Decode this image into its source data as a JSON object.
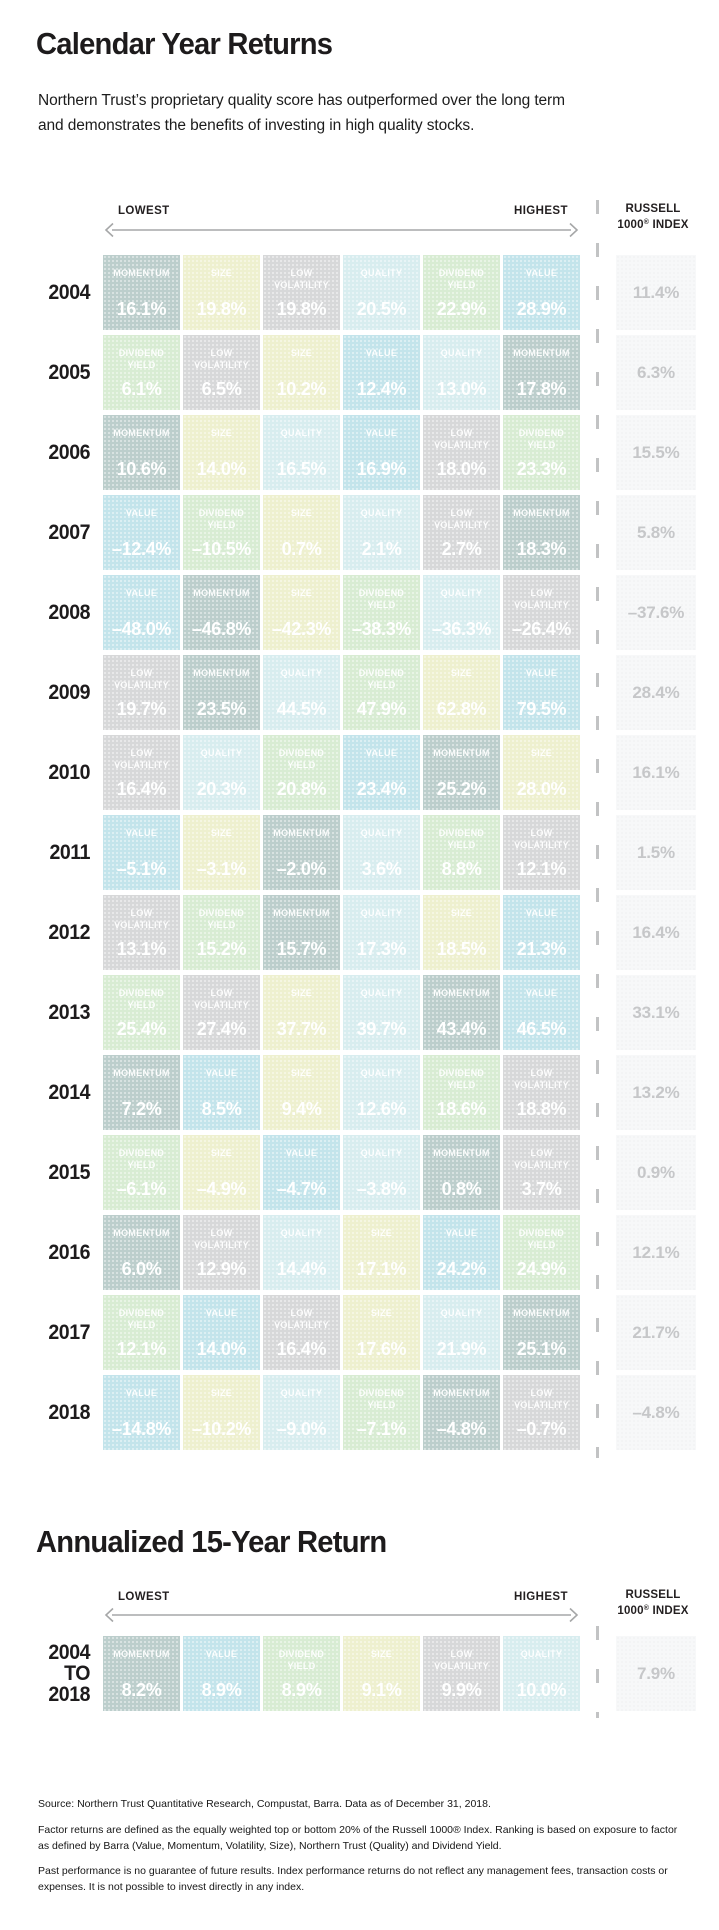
{
  "page": {
    "title": "Calendar Year Returns",
    "subtitle_line1": "Northern Trust’s proprietary quality score has outperformed over the long term",
    "subtitle_line2": "and demonstrates the benefits of investing in high quality stocks."
  },
  "scale_header": {
    "lowest": "LOWEST",
    "highest": "HIGHEST",
    "russell_line1": "RUSSELL",
    "russell_line2_num": "1000",
    "russell_line2_reg": "®",
    "russell_line2_rest": " INDEX"
  },
  "factor_colors": {
    "MOMENTUM": "#bccecc",
    "SIZE": "#eef0cf",
    "LOW VOLATILITY": "#d7d8d9",
    "QUALITY": "#d8edef",
    "DIVIDEND YIELD": "#d8ecd3",
    "VALUE": "#c3e4eb"
  },
  "chart_data": {
    "type": "table",
    "title": "Calendar Year Returns",
    "layout_note": "Each year row ranks six factor returns from lowest (left) to highest (right); right column is the Russell 1000 Index return",
    "rows": [
      {
        "year_lines": [
          "2004"
        ],
        "cells": [
          {
            "factor": "MOMENTUM",
            "value": "16.1%"
          },
          {
            "factor": "SIZE",
            "value": "19.8%"
          },
          {
            "factor": "LOW VOLATILITY",
            "value": "19.8%"
          },
          {
            "factor": "QUALITY",
            "value": "20.5%"
          },
          {
            "factor": "DIVIDEND YIELD",
            "value": "22.9%"
          },
          {
            "factor": "VALUE",
            "value": "28.9%"
          }
        ],
        "russell": "11.4%"
      },
      {
        "year_lines": [
          "2005"
        ],
        "cells": [
          {
            "factor": "DIVIDEND YIELD",
            "value": "6.1%"
          },
          {
            "factor": "LOW VOLATILITY",
            "value": "6.5%"
          },
          {
            "factor": "SIZE",
            "value": "10.2%"
          },
          {
            "factor": "VALUE",
            "value": "12.4%"
          },
          {
            "factor": "QUALITY",
            "value": "13.0%"
          },
          {
            "factor": "MOMENTUM",
            "value": "17.8%"
          }
        ],
        "russell": "6.3%"
      },
      {
        "year_lines": [
          "2006"
        ],
        "cells": [
          {
            "factor": "MOMENTUM",
            "value": "10.6%"
          },
          {
            "factor": "SIZE",
            "value": "14.0%"
          },
          {
            "factor": "QUALITY",
            "value": "16.5%"
          },
          {
            "factor": "VALUE",
            "value": "16.9%"
          },
          {
            "factor": "LOW VOLATILITY",
            "value": "18.0%"
          },
          {
            "factor": "DIVIDEND YIELD",
            "value": "23.3%"
          }
        ],
        "russell": "15.5%"
      },
      {
        "year_lines": [
          "2007"
        ],
        "cells": [
          {
            "factor": "VALUE",
            "value": "–12.4%"
          },
          {
            "factor": "DIVIDEND YIELD",
            "value": "–10.5%"
          },
          {
            "factor": "SIZE",
            "value": "0.7%"
          },
          {
            "factor": "QUALITY",
            "value": "2.1%"
          },
          {
            "factor": "LOW VOLATILITY",
            "value": "2.7%"
          },
          {
            "factor": "MOMENTUM",
            "value": "18.3%"
          }
        ],
        "russell": "5.8%"
      },
      {
        "year_lines": [
          "2008"
        ],
        "cells": [
          {
            "factor": "VALUE",
            "value": "–48.0%"
          },
          {
            "factor": "MOMENTUM",
            "value": "–46.8%"
          },
          {
            "factor": "SIZE",
            "value": "–42.3%"
          },
          {
            "factor": "DIVIDEND YIELD",
            "value": "–38.3%"
          },
          {
            "factor": "QUALITY",
            "value": "–36.3%"
          },
          {
            "factor": "LOW VOLATILITY",
            "value": "–26.4%"
          }
        ],
        "russell": "–37.6%"
      },
      {
        "year_lines": [
          "2009"
        ],
        "cells": [
          {
            "factor": "LOW VOLATILITY",
            "value": "19.7%"
          },
          {
            "factor": "MOMENTUM",
            "value": "23.5%"
          },
          {
            "factor": "QUALITY",
            "value": "44.5%"
          },
          {
            "factor": "DIVIDEND YIELD",
            "value": "47.9%"
          },
          {
            "factor": "SIZE",
            "value": "62.8%"
          },
          {
            "factor": "VALUE",
            "value": "79.5%"
          }
        ],
        "russell": "28.4%"
      },
      {
        "year_lines": [
          "2010"
        ],
        "cells": [
          {
            "factor": "LOW VOLATILITY",
            "value": "16.4%"
          },
          {
            "factor": "QUALITY",
            "value": "20.3%"
          },
          {
            "factor": "DIVIDEND YIELD",
            "value": "20.8%"
          },
          {
            "factor": "VALUE",
            "value": "23.4%"
          },
          {
            "factor": "MOMENTUM",
            "value": "25.2%"
          },
          {
            "factor": "SIZE",
            "value": "28.0%"
          }
        ],
        "russell": "16.1%"
      },
      {
        "year_lines": [
          "2011"
        ],
        "cells": [
          {
            "factor": "VALUE",
            "value": "–5.1%"
          },
          {
            "factor": "SIZE",
            "value": "–3.1%"
          },
          {
            "factor": "MOMENTUM",
            "value": "–2.0%"
          },
          {
            "factor": "QUALITY",
            "value": "3.6%"
          },
          {
            "factor": "DIVIDEND YIELD",
            "value": "8.8%"
          },
          {
            "factor": "LOW VOLATILITY",
            "value": "12.1%"
          }
        ],
        "russell": "1.5%"
      },
      {
        "year_lines": [
          "2012"
        ],
        "cells": [
          {
            "factor": "LOW VOLATILITY",
            "value": "13.1%"
          },
          {
            "factor": "DIVIDEND YIELD",
            "value": "15.2%"
          },
          {
            "factor": "MOMENTUM",
            "value": "15.7%"
          },
          {
            "factor": "QUALITY",
            "value": "17.3%"
          },
          {
            "factor": "SIZE",
            "value": "18.5%"
          },
          {
            "factor": "VALUE",
            "value": "21.3%"
          }
        ],
        "russell": "16.4%"
      },
      {
        "year_lines": [
          "2013"
        ],
        "cells": [
          {
            "factor": "DIVIDEND YIELD",
            "value": "25.4%"
          },
          {
            "factor": "LOW VOLATILITY",
            "value": "27.4%"
          },
          {
            "factor": "SIZE",
            "value": "37.7%"
          },
          {
            "factor": "QUALITY",
            "value": "39.7%"
          },
          {
            "factor": "MOMENTUM",
            "value": "43.4%"
          },
          {
            "factor": "VALUE",
            "value": "46.5%"
          }
        ],
        "russell": "33.1%"
      },
      {
        "year_lines": [
          "2014"
        ],
        "cells": [
          {
            "factor": "MOMENTUM",
            "value": "7.2%"
          },
          {
            "factor": "VALUE",
            "value": "8.5%"
          },
          {
            "factor": "SIZE",
            "value": "9.4%"
          },
          {
            "factor": "QUALITY",
            "value": "12.6%"
          },
          {
            "factor": "DIVIDEND YIELD",
            "value": "18.6%"
          },
          {
            "factor": "LOW VOLATILITY",
            "value": "18.8%"
          }
        ],
        "russell": "13.2%"
      },
      {
        "year_lines": [
          "2015"
        ],
        "cells": [
          {
            "factor": "DIVIDEND YIELD",
            "value": "–6.1%"
          },
          {
            "factor": "SIZE",
            "value": "–4.9%"
          },
          {
            "factor": "VALUE",
            "value": "–4.7%"
          },
          {
            "factor": "QUALITY",
            "value": "–3.8%"
          },
          {
            "factor": "MOMENTUM",
            "value": "0.8%"
          },
          {
            "factor": "LOW VOLATILITY",
            "value": "3.7%"
          }
        ],
        "russell": "0.9%"
      },
      {
        "year_lines": [
          "2016"
        ],
        "cells": [
          {
            "factor": "MOMENTUM",
            "value": "6.0%"
          },
          {
            "factor": "LOW VOLATILITY",
            "value": "12.9%"
          },
          {
            "factor": "QUALITY",
            "value": "14.4%"
          },
          {
            "factor": "SIZE",
            "value": "17.1%"
          },
          {
            "factor": "VALUE",
            "value": "24.2%"
          },
          {
            "factor": "DIVIDEND YIELD",
            "value": "24.9%"
          }
        ],
        "russell": "12.1%"
      },
      {
        "year_lines": [
          "2017"
        ],
        "cells": [
          {
            "factor": "DIVIDEND YIELD",
            "value": "12.1%"
          },
          {
            "factor": "VALUE",
            "value": "14.0%"
          },
          {
            "factor": "LOW VOLATILITY",
            "value": "16.4%"
          },
          {
            "factor": "SIZE",
            "value": "17.6%"
          },
          {
            "factor": "QUALITY",
            "value": "21.9%"
          },
          {
            "factor": "MOMENTUM",
            "value": "25.1%"
          }
        ],
        "russell": "21.7%"
      },
      {
        "year_lines": [
          "2018"
        ],
        "cells": [
          {
            "factor": "VALUE",
            "value": "–14.8%"
          },
          {
            "factor": "SIZE",
            "value": "–10.2%"
          },
          {
            "factor": "QUALITY",
            "value": "–9.0%"
          },
          {
            "factor": "DIVIDEND YIELD",
            "value": "–7.1%"
          },
          {
            "factor": "MOMENTUM",
            "value": "–4.8%"
          },
          {
            "factor": "LOW VOLATILITY",
            "value": "–0.7%"
          }
        ],
        "russell": "–4.8%"
      }
    ]
  },
  "annualized": {
    "title": "Annualized 15-Year Return",
    "row": {
      "year_lines": [
        "2004",
        "TO",
        "2018"
      ],
      "cells": [
        {
          "factor": "MOMENTUM",
          "value": "8.2%"
        },
        {
          "factor": "VALUE",
          "value": "8.9%"
        },
        {
          "factor": "DIVIDEND YIELD",
          "value": "8.9%"
        },
        {
          "factor": "SIZE",
          "value": "9.1%"
        },
        {
          "factor": "LOW VOLATILITY",
          "value": "9.9%"
        },
        {
          "factor": "QUALITY",
          "value": "10.0%"
        }
      ],
      "russell": "7.9%"
    }
  },
  "footnotes": [
    "Source: Northern Trust Quantitative Research, Compustat, Barra. Data as of December 31, 2018.",
    "Factor returns are defined as the equally weighted top or bottom 20% of the Russell 1000® Index. Ranking is based on exposure to factor as defined by Barra (Value, Momentum, Volatility, Size), Northern Trust (Quality) and Dividend Yield.",
    "Past performance is no guarantee of future results. Index performance returns do not reflect any management fees, transaction costs or expenses. It is not possible to invest directly in any index."
  ]
}
